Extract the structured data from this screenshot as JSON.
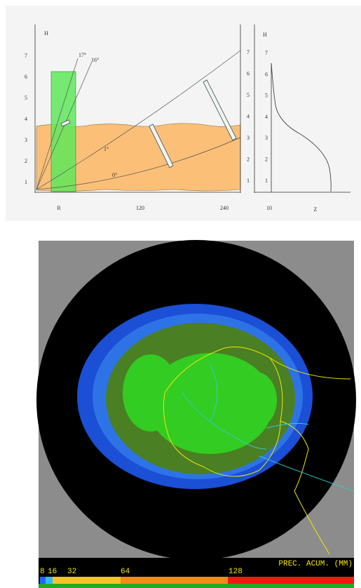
{
  "diagram": {
    "left_axis_title": "H",
    "left_ticks": [
      "1",
      "2",
      "3",
      "4",
      "5",
      "6",
      "7"
    ],
    "beam_labels": [
      "17°",
      "16°",
      "1°",
      "0°"
    ],
    "x_labels": [
      "R",
      "120",
      "240"
    ],
    "right_ticks": [
      "1",
      "2",
      "3",
      "4",
      "5",
      "6",
      "7"
    ],
    "profile": {
      "title": "H",
      "ticks": [
        "1",
        "2",
        "3",
        "4",
        "5",
        "6",
        "7"
      ],
      "x_labels": [
        "10",
        "Z"
      ]
    }
  },
  "radar": {
    "legend_ticks": [
      "8",
      "16",
      "32",
      "64",
      "128"
    ],
    "legend_title": "PREC. ACUM. (MM)"
  }
}
